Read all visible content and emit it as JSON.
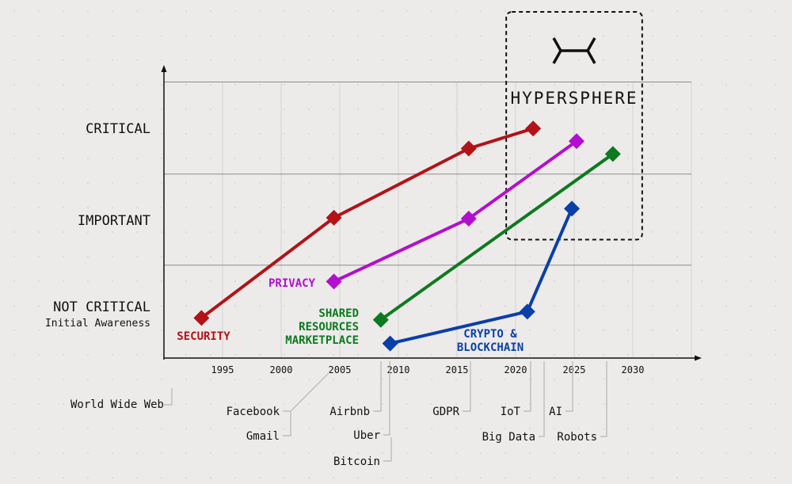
{
  "chart_data": {
    "type": "line",
    "x": {
      "min": 1990,
      "max": 2035,
      "ticks": [
        1995,
        2000,
        2005,
        2010,
        2015,
        2020,
        2025,
        2030
      ]
    },
    "y": {
      "min": 0,
      "max": 3,
      "levels": [
        {
          "value": 3,
          "label": "CRITICAL",
          "sublabel": ""
        },
        {
          "value": 2,
          "label": "IMPORTANT",
          "sublabel": ""
        },
        {
          "value": 1,
          "label": "NOT CRITICAL",
          "sublabel": "Initial Awareness"
        }
      ]
    },
    "grid": true,
    "series": [
      {
        "name": "SECURITY",
        "label_lines": [
          "SECURITY"
        ],
        "color": "#b31217",
        "points": [
          [
            1993.2,
            0.44
          ],
          [
            2004.5,
            1.54
          ],
          [
            2016.0,
            2.3
          ],
          [
            2021.5,
            2.52
          ]
        ]
      },
      {
        "name": "PRIVACY",
        "label_lines": [
          "PRIVACY"
        ],
        "color": "#b30ecf",
        "points": [
          [
            2004.5,
            0.84
          ],
          [
            2016.0,
            1.53
          ],
          [
            2025.2,
            2.38
          ]
        ]
      },
      {
        "name": "SHARED RESOURCES MARKETPLACE",
        "label_lines": [
          "SHARED",
          "RESOURCES",
          "MARKETPLACE"
        ],
        "color": "#0d7a1f",
        "points": [
          [
            2008.5,
            0.42
          ],
          [
            2028.3,
            2.24
          ]
        ]
      },
      {
        "name": "CRYPTO & BLOCKCHAIN",
        "label_lines": [
          "CRYPTO &",
          "BLOCKCHAIN"
        ],
        "color": "#0b3fa8",
        "points": [
          [
            2009.3,
            0.16
          ],
          [
            2021.0,
            0.51
          ],
          [
            2024.8,
            1.64
          ]
        ]
      }
    ],
    "annotation": {
      "title": "HYPERSPHERE",
      "x_range": [
        2019.2,
        2030.8
      ],
      "y_range": [
        1.3,
        3.8
      ]
    },
    "events": [
      {
        "label": "World Wide Web",
        "year": 1991
      },
      {
        "label": "Facebook",
        "year": 2004
      },
      {
        "label": "Gmail",
        "year": 2004
      },
      {
        "label": "Airbnb",
        "year": 2008
      },
      {
        "label": "Uber",
        "year": 2009
      },
      {
        "label": "Bitcoin",
        "year": 2009
      },
      {
        "label": "GDPR",
        "year": 2016
      },
      {
        "label": "IoT",
        "year": 2020
      },
      {
        "label": "Big Data",
        "year": 2021
      },
      {
        "label": "AI",
        "year": 2023
      },
      {
        "label": "Robots",
        "year": 2026
      }
    ]
  }
}
